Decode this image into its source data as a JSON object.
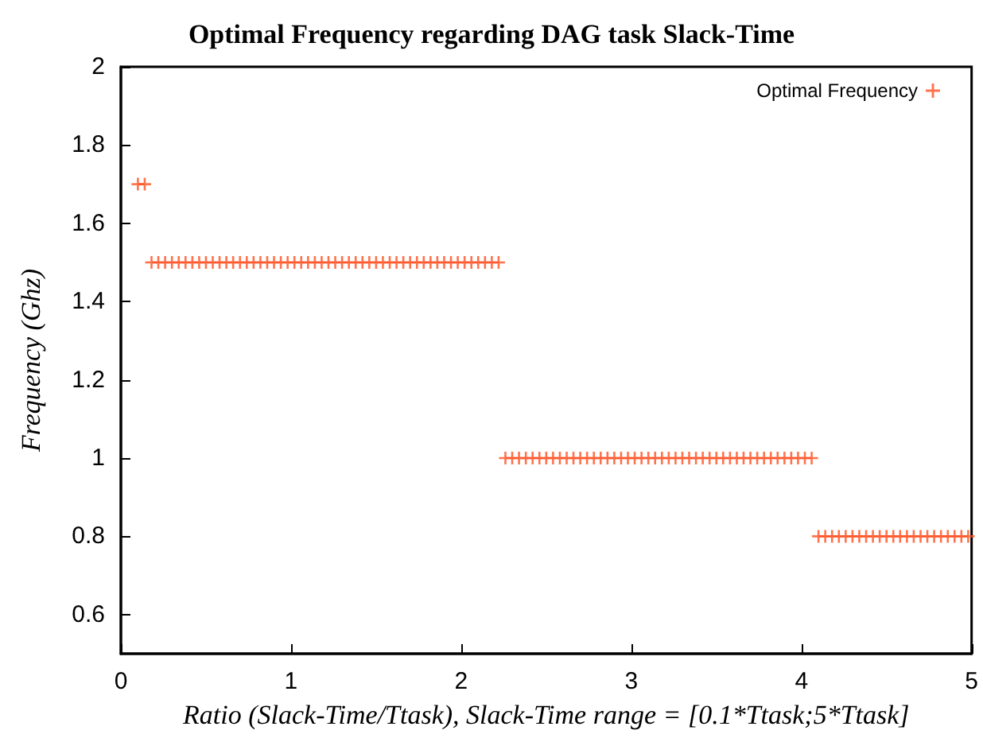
{
  "chart_data": {
    "type": "scatter",
    "title": "Optimal Frequency regarding DAG task Slack-Time",
    "xlabel": "Ratio (Slack-Time/Ttask), Slack-Time range = [0.1*Ttask;5*Ttask]",
    "ylabel": "Frequency (Ghz)",
    "xlim": [
      0,
      5
    ],
    "xticks": [
      0,
      1,
      2,
      3,
      4,
      5
    ],
    "ylim": [
      0.5,
      2
    ],
    "yticks": [
      0.6,
      0.8,
      1,
      1.2,
      1.4,
      1.6,
      1.8,
      2
    ],
    "grid": false,
    "legend": "top right",
    "marker": "cross",
    "series": [
      {
        "name": "Optimal Frequency",
        "color": "#ff4f1f",
        "x": [
          0.1,
          0.14,
          0.18,
          0.22,
          0.26,
          0.3,
          0.34,
          0.38,
          0.42,
          0.46,
          0.5,
          0.54,
          0.58,
          0.62,
          0.66,
          0.7,
          0.74,
          0.78,
          0.82,
          0.86,
          0.9,
          0.94,
          0.98,
          1.02,
          1.06,
          1.1,
          1.14,
          1.18,
          1.22,
          1.26,
          1.3,
          1.34,
          1.38,
          1.42,
          1.46,
          1.5,
          1.54,
          1.58,
          1.62,
          1.66,
          1.7,
          1.74,
          1.78,
          1.82,
          1.86,
          1.9,
          1.94,
          1.98,
          2.02,
          2.06,
          2.1,
          2.14,
          2.18,
          2.22,
          2.26,
          2.3,
          2.34,
          2.38,
          2.42,
          2.46,
          2.5,
          2.54,
          2.58,
          2.62,
          2.66,
          2.7,
          2.74,
          2.78,
          2.82,
          2.86,
          2.9,
          2.94,
          2.98,
          3.02,
          3.06,
          3.1,
          3.14,
          3.18,
          3.22,
          3.26,
          3.3,
          3.34,
          3.38,
          3.42,
          3.46,
          3.5,
          3.54,
          3.58,
          3.62,
          3.66,
          3.7,
          3.74,
          3.78,
          3.82,
          3.86,
          3.9,
          3.94,
          3.98,
          4.02,
          4.06,
          4.1,
          4.14,
          4.18,
          4.22,
          4.26,
          4.3,
          4.34,
          4.38,
          4.42,
          4.46,
          4.5,
          4.54,
          4.58,
          4.62,
          4.66,
          4.7,
          4.74,
          4.78,
          4.82,
          4.86,
          4.9,
          4.94,
          4.98
        ],
        "values": [
          1.7,
          1.7,
          1.5,
          1.5,
          1.5,
          1.5,
          1.5,
          1.5,
          1.5,
          1.5,
          1.5,
          1.5,
          1.5,
          1.5,
          1.5,
          1.5,
          1.5,
          1.5,
          1.5,
          1.5,
          1.5,
          1.5,
          1.5,
          1.5,
          1.5,
          1.5,
          1.5,
          1.5,
          1.5,
          1.5,
          1.5,
          1.5,
          1.5,
          1.5,
          1.5,
          1.5,
          1.5,
          1.5,
          1.5,
          1.5,
          1.5,
          1.5,
          1.5,
          1.5,
          1.5,
          1.5,
          1.5,
          1.5,
          1.5,
          1.5,
          1.5,
          1.5,
          1.5,
          1.5,
          1,
          1,
          1,
          1,
          1,
          1,
          1,
          1,
          1,
          1,
          1,
          1,
          1,
          1,
          1,
          1,
          1,
          1,
          1,
          1,
          1,
          1,
          1,
          1,
          1,
          1,
          1,
          1,
          1,
          1,
          1,
          1,
          1,
          1,
          1,
          1,
          1,
          1,
          1,
          1,
          1,
          1,
          1,
          1,
          1,
          1,
          0.8,
          0.8,
          0.8,
          0.8,
          0.8,
          0.8,
          0.8,
          0.8,
          0.8,
          0.8,
          0.8,
          0.8,
          0.8,
          0.8,
          0.8,
          0.8,
          0.8,
          0.8,
          0.8,
          0.8,
          0.8,
          0.8,
          0.8
        ]
      }
    ]
  }
}
